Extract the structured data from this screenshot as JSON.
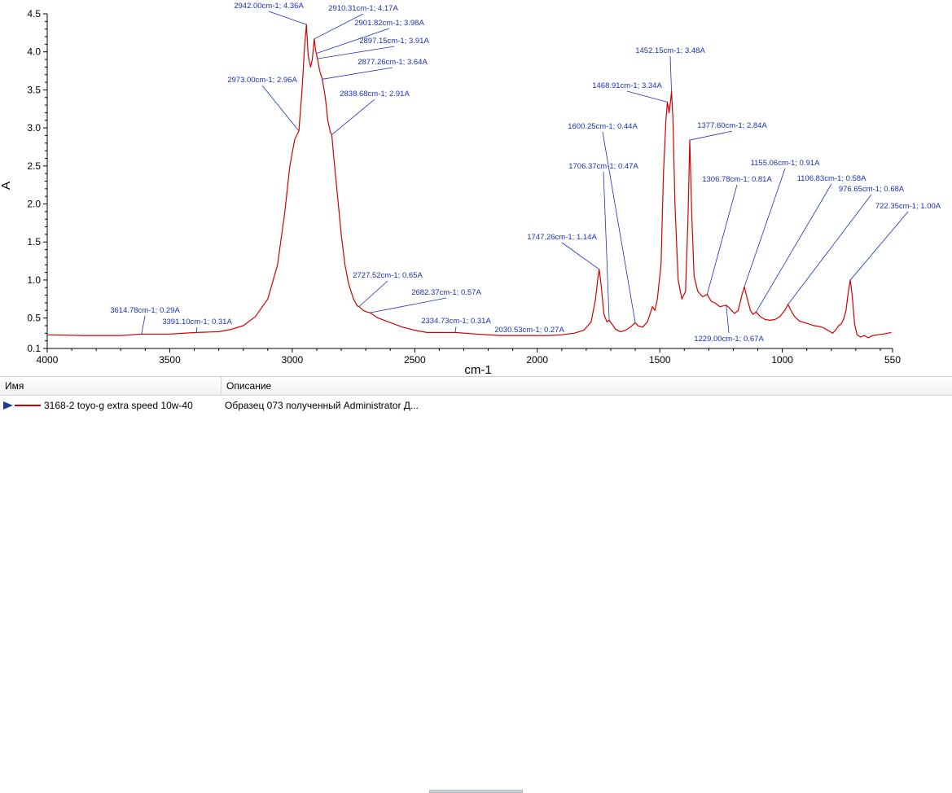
{
  "chart_data": {
    "type": "line",
    "xlabel": "cm-1",
    "ylabel": "A",
    "xlim": [
      4000,
      550
    ],
    "ylim": [
      0.1,
      4.5
    ],
    "x_reversed": true,
    "grid": false,
    "xticks": [
      4000,
      3500,
      3000,
      2500,
      2000,
      1500,
      1000,
      550
    ],
    "yticks": [
      0.1,
      0.5,
      1.0,
      1.5,
      2.0,
      2.5,
      3.0,
      3.5,
      4.0,
      4.5
    ],
    "xtick_labels": [
      "4000",
      "3500",
      "3000",
      "2500",
      "2000",
      "1500",
      "1000",
      "550"
    ],
    "ytick_labels": [
      "0.1",
      "0.5",
      "1.0",
      "1.5",
      "2.0",
      "2.5",
      "3.0",
      "3.5",
      "4.0",
      "4.5"
    ],
    "series": [
      {
        "name": "3168-2 toyo-g extra speed 10w-40",
        "color": "#d00000",
        "points": [
          [
            4000,
            0.28
          ],
          [
            3850,
            0.27
          ],
          [
            3700,
            0.27
          ],
          [
            3614.78,
            0.29
          ],
          [
            3500,
            0.29
          ],
          [
            3391.1,
            0.31
          ],
          [
            3300,
            0.32
          ],
          [
            3250,
            0.35
          ],
          [
            3200,
            0.4
          ],
          [
            3150,
            0.52
          ],
          [
            3100,
            0.75
          ],
          [
            3060,
            1.2
          ],
          [
            3030,
            1.9
          ],
          [
            3010,
            2.5
          ],
          [
            2990,
            2.85
          ],
          [
            2973.0,
            2.96
          ],
          [
            2960,
            3.5
          ],
          [
            2950,
            4.05
          ],
          [
            2942.0,
            4.36
          ],
          [
            2935,
            3.95
          ],
          [
            2925,
            3.8
          ],
          [
            2918,
            3.9
          ],
          [
            2910.31,
            4.17
          ],
          [
            2905,
            4.02
          ],
          [
            2901.82,
            3.98
          ],
          [
            2897.15,
            3.91
          ],
          [
            2888,
            3.75
          ],
          [
            2877.26,
            3.64
          ],
          [
            2865,
            3.4
          ],
          [
            2855,
            3.1
          ],
          [
            2845,
            2.95
          ],
          [
            2838.68,
            2.91
          ],
          [
            2830,
            2.6
          ],
          [
            2815,
            2.1
          ],
          [
            2800,
            1.6
          ],
          [
            2785,
            1.2
          ],
          [
            2770,
            0.95
          ],
          [
            2750,
            0.75
          ],
          [
            2735,
            0.66
          ],
          [
            2727.52,
            0.65
          ],
          [
            2710,
            0.6
          ],
          [
            2695,
            0.58
          ],
          [
            2682.37,
            0.57
          ],
          [
            2650,
            0.5
          ],
          [
            2600,
            0.44
          ],
          [
            2550,
            0.38
          ],
          [
            2500,
            0.34
          ],
          [
            2450,
            0.31
          ],
          [
            2334.73,
            0.31
          ],
          [
            2250,
            0.29
          ],
          [
            2150,
            0.27
          ],
          [
            2030.53,
            0.27
          ],
          [
            1950,
            0.27
          ],
          [
            1900,
            0.28
          ],
          [
            1850,
            0.3
          ],
          [
            1810,
            0.34
          ],
          [
            1780,
            0.45
          ],
          [
            1762,
            0.75
          ],
          [
            1752,
            1.05
          ],
          [
            1747.26,
            1.14
          ],
          [
            1740,
            0.95
          ],
          [
            1728,
            0.55
          ],
          [
            1716,
            0.45
          ],
          [
            1706.37,
            0.47
          ],
          [
            1695,
            0.42
          ],
          [
            1680,
            0.35
          ],
          [
            1660,
            0.32
          ],
          [
            1640,
            0.34
          ],
          [
            1620,
            0.38
          ],
          [
            1600.25,
            0.44
          ],
          [
            1590,
            0.4
          ],
          [
            1570,
            0.38
          ],
          [
            1550,
            0.45
          ],
          [
            1530,
            0.65
          ],
          [
            1520,
            0.6
          ],
          [
            1510,
            0.75
          ],
          [
            1495,
            1.2
          ],
          [
            1485,
            2.4
          ],
          [
            1475,
            3.1
          ],
          [
            1468.91,
            3.34
          ],
          [
            1462,
            3.2
          ],
          [
            1456,
            3.35
          ],
          [
            1452.15,
            3.48
          ],
          [
            1446,
            3.1
          ],
          [
            1438,
            2.0
          ],
          [
            1425,
            1.0
          ],
          [
            1410,
            0.75
          ],
          [
            1395,
            0.85
          ],
          [
            1385,
            1.8
          ],
          [
            1377.6,
            2.84
          ],
          [
            1370,
            1.9
          ],
          [
            1360,
            1.05
          ],
          [
            1345,
            0.85
          ],
          [
            1325,
            0.78
          ],
          [
            1306.78,
            0.81
          ],
          [
            1290,
            0.72
          ],
          [
            1275,
            0.7
          ],
          [
            1255,
            0.65
          ],
          [
            1240,
            0.66
          ],
          [
            1229.0,
            0.67
          ],
          [
            1215,
            0.63
          ],
          [
            1195,
            0.56
          ],
          [
            1180,
            0.6
          ],
          [
            1165,
            0.8
          ],
          [
            1155.06,
            0.91
          ],
          [
            1145,
            0.78
          ],
          [
            1130,
            0.6
          ],
          [
            1120,
            0.55
          ],
          [
            1106.83,
            0.58
          ],
          [
            1090,
            0.52
          ],
          [
            1070,
            0.48
          ],
          [
            1050,
            0.47
          ],
          [
            1030,
            0.48
          ],
          [
            1010,
            0.52
          ],
          [
            990,
            0.6
          ],
          [
            976.65,
            0.68
          ],
          [
            965,
            0.6
          ],
          [
            950,
            0.52
          ],
          [
            930,
            0.46
          ],
          [
            910,
            0.44
          ],
          [
            890,
            0.42
          ],
          [
            870,
            0.4
          ],
          [
            850,
            0.39
          ],
          [
            830,
            0.37
          ],
          [
            810,
            0.33
          ],
          [
            795,
            0.3
          ],
          [
            780,
            0.35
          ],
          [
            770,
            0.4
          ],
          [
            760,
            0.42
          ],
          [
            750,
            0.48
          ],
          [
            740,
            0.6
          ],
          [
            730,
            0.85
          ],
          [
            722.35,
            1.0
          ],
          [
            715,
            0.8
          ],
          [
            705,
            0.42
          ],
          [
            695,
            0.28
          ],
          [
            680,
            0.25
          ],
          [
            665,
            0.27
          ],
          [
            650,
            0.24
          ],
          [
            630,
            0.27
          ],
          [
            610,
            0.28
          ],
          [
            590,
            0.29
          ],
          [
            570,
            0.3
          ],
          [
            555,
            0.31
          ]
        ]
      }
    ],
    "annotations": [
      {
        "x": 3614.78,
        "y": 0.29,
        "text": "3614.78cm-1; 0.29A"
      },
      {
        "x": 3391.1,
        "y": 0.31,
        "text": "3391.10cm-1; 0.31A"
      },
      {
        "x": 2973.0,
        "y": 2.96,
        "text": "2973.00cm-1; 2.96A"
      },
      {
        "x": 2942.0,
        "y": 4.36,
        "text": "2942.00cm-1; 4.36A"
      },
      {
        "x": 2910.31,
        "y": 4.17,
        "text": "2910.31cm-1; 4.17A"
      },
      {
        "x": 2901.82,
        "y": 3.98,
        "text": "2901.82cm-1; 3.98A"
      },
      {
        "x": 2897.15,
        "y": 3.91,
        "text": "2897.15cm-1; 3.91A"
      },
      {
        "x": 2877.26,
        "y": 3.64,
        "text": "2877.26cm-1; 3.64A"
      },
      {
        "x": 2838.68,
        "y": 2.91,
        "text": "2838.68cm-1; 2.91A"
      },
      {
        "x": 2727.52,
        "y": 0.65,
        "text": "2727.52cm-1; 0.65A"
      },
      {
        "x": 2682.37,
        "y": 0.57,
        "text": "2682.37cm-1; 0.57A"
      },
      {
        "x": 2334.73,
        "y": 0.31,
        "text": "2334.73cm-1; 0.31A"
      },
      {
        "x": 2030.53,
        "y": 0.27,
        "text": "2030.53cm-1; 0.27A"
      },
      {
        "x": 1747.26,
        "y": 1.14,
        "text": "1747.26cm-1; 1.14A"
      },
      {
        "x": 1706.37,
        "y": 0.47,
        "text": "1706.37cm-1; 0.47A"
      },
      {
        "x": 1600.25,
        "y": 0.44,
        "text": "1600.25cm-1; 0.44A"
      },
      {
        "x": 1468.91,
        "y": 3.34,
        "text": "1468.91cm-1; 3.34A"
      },
      {
        "x": 1452.15,
        "y": 3.48,
        "text": "1452.15cm-1; 3.48A"
      },
      {
        "x": 1377.6,
        "y": 2.84,
        "text": "1377.60cm-1; 2.84A"
      },
      {
        "x": 1306.78,
        "y": 0.81,
        "text": "1306.78cm-1; 0.81A"
      },
      {
        "x": 1229.0,
        "y": 0.67,
        "text": "1229.00cm-1; 0.67A"
      },
      {
        "x": 1155.06,
        "y": 0.91,
        "text": "1155.06cm-1; 0.91A"
      },
      {
        "x": 1106.83,
        "y": 0.58,
        "text": "1106.83cm-1; 0.58A"
      },
      {
        "x": 976.65,
        "y": 0.68,
        "text": "976.65cm-1; 0.68A"
      },
      {
        "x": 722.35,
        "y": 1.0,
        "text": "722.35cm-1; 1.00A"
      }
    ],
    "annotation_color": "#1a2fbf"
  },
  "legend": {
    "col_name": "Имя",
    "col_desc": "Описание",
    "rows": [
      {
        "name": "3168-2 toyo-g extra speed 10w-40",
        "description": "Образец 073 полученный Administrator Д...",
        "line_color": "#d00000",
        "marker": "arrow-icon"
      }
    ]
  }
}
